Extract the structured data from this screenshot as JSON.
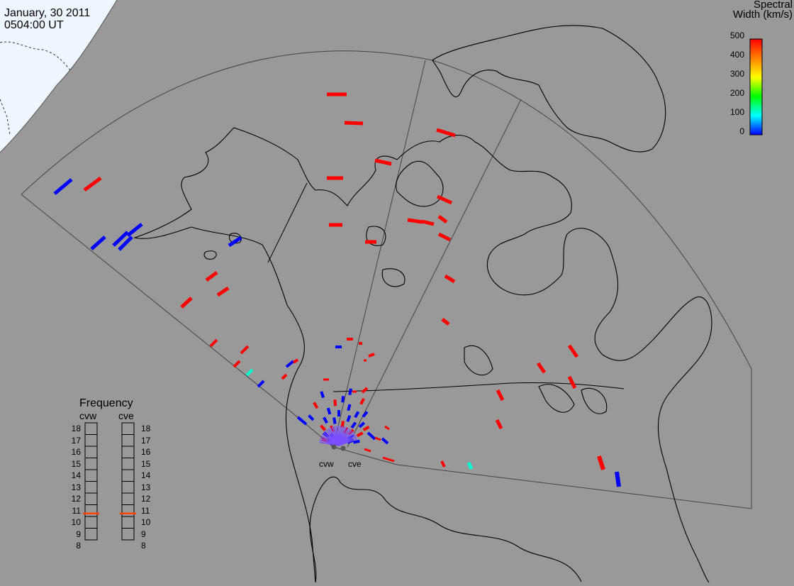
{
  "header": {
    "date": "January, 30 2011",
    "time": "0504:00 UT"
  },
  "colorbar": {
    "title_line1": "Spectral",
    "title_line2": "Width (km/s)",
    "ticks": [
      "500",
      "400",
      "300",
      "200",
      "100",
      "0"
    ],
    "colors": [
      "#ff0000",
      "#ff8000",
      "#ffff00",
      "#00ff00",
      "#00ffff",
      "#0000ff"
    ]
  },
  "frequency_panel": {
    "title": "Frequency",
    "radars": [
      "cvw",
      "cve"
    ],
    "ticks": [
      "18",
      "17",
      "16",
      "15",
      "14",
      "13",
      "12",
      "11",
      "10",
      "9",
      "8"
    ],
    "cvw_value": 11,
    "cve_value": 11,
    "marker_color": "#ff4400"
  },
  "map_labels": {
    "cvw": "cvw",
    "cve": "cve"
  },
  "colors": {
    "background": "#999999",
    "daylight": "#eef6ff",
    "red_echo": "#ff0000",
    "blue_echo": "#0000ff",
    "cyan_echo": "#00ffcc"
  }
}
